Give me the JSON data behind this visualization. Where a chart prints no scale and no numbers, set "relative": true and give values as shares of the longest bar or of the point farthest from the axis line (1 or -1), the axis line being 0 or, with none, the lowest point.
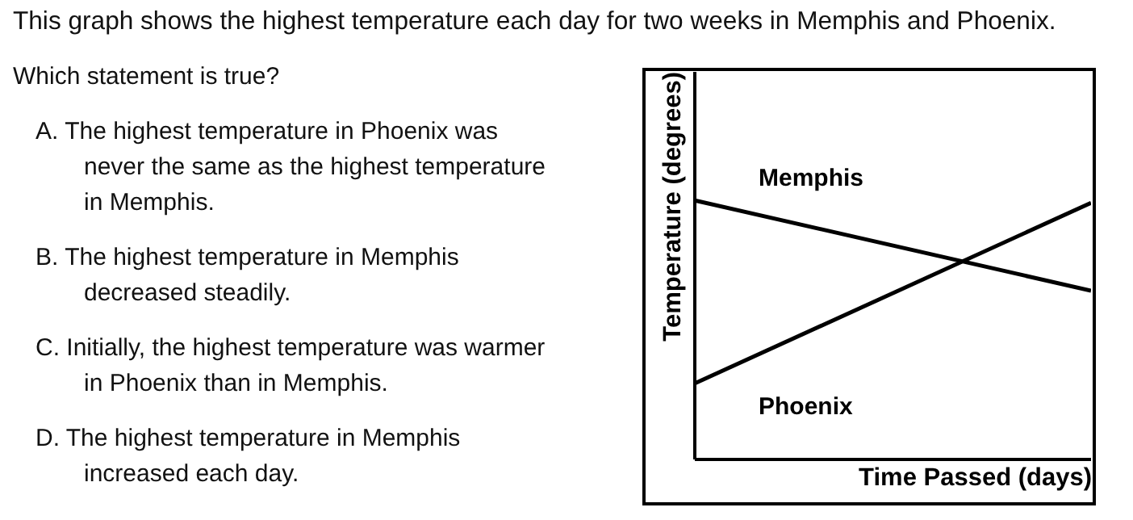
{
  "chart_data": {
    "type": "line",
    "relative": true,
    "title": "This graph shows the highest temperature each day for two weeks in Memphis and Phoenix.",
    "annotations": [
      "Which statement is true?",
      "A. The highest temperature in Phoenix was never the same as the highest temperature in Memphis.",
      "B. The highest temperature in Memphis decreased steadily.",
      "C. Initially, the highest temperature was warmer in Phoenix than in Memphis.",
      "D. The highest temperature in Memphis increased each day."
    ],
    "xlabel": "Time Passed (days)",
    "ylabel": "Temperature (degrees)",
    "categories": [
      null,
      null
    ],
    "series": [
      {
        "name": "Memphis",
        "color": "#000000",
        "values": [
          1,
          0.65
        ]
      },
      {
        "name": "Phoenix",
        "color": "#000000",
        "values": [
          0.29,
          0.99
        ]
      }
    ],
    "grid": false
  }
}
